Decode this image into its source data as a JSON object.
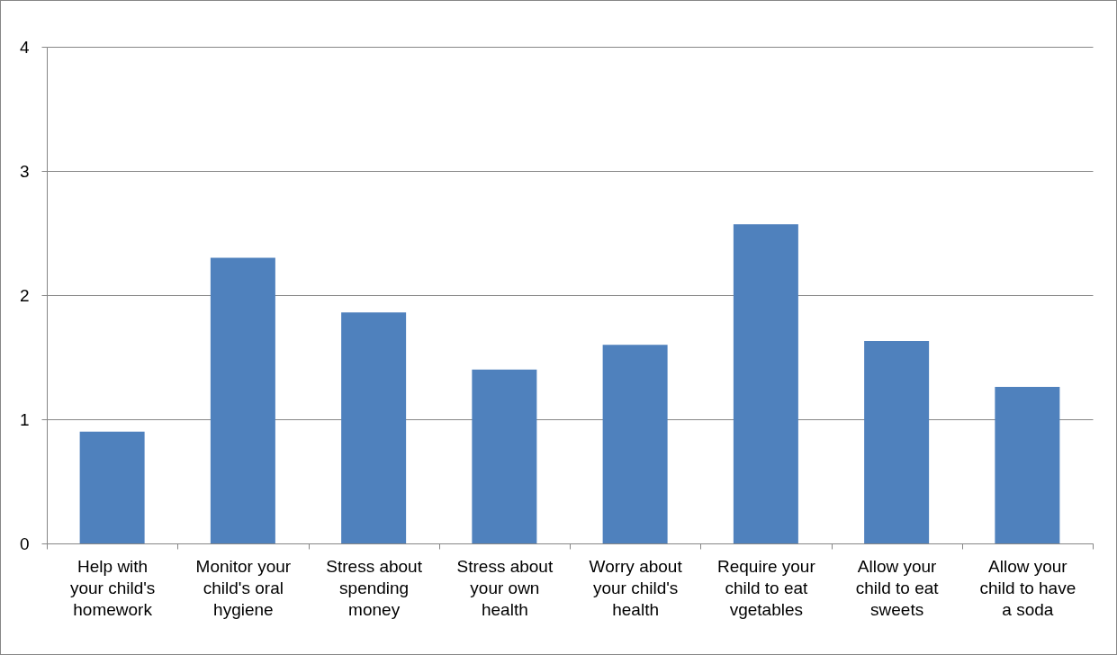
{
  "chart_data": {
    "type": "bar",
    "categories": [
      "Help with your child's homework",
      "Monitor your child's oral hygiene",
      "Stress about spending money",
      "Stress about your own health",
      "Worry about your child's health",
      "Require your child to eat vgetables",
      "Allow your child to eat sweets",
      "Allow your child to have a soda"
    ],
    "values": [
      0.9,
      2.3,
      1.86,
      1.4,
      1.6,
      2.57,
      1.63,
      1.26
    ],
    "color": "#4f81bd",
    "ylim": [
      0,
      4
    ],
    "yticks": [
      0,
      1,
      2,
      3,
      4
    ],
    "grid": "y"
  }
}
